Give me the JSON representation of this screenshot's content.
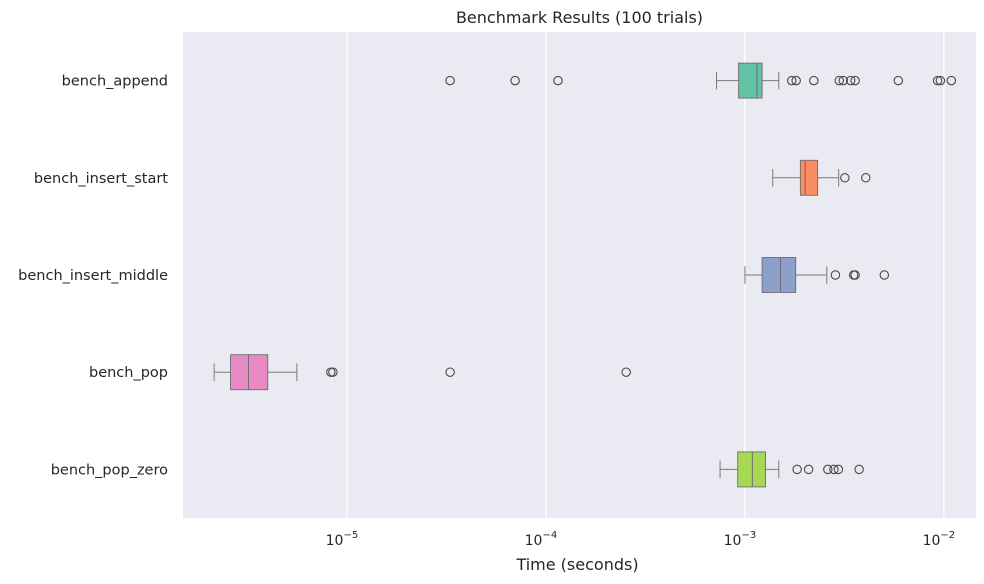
{
  "chart_data": {
    "type": "boxplot",
    "orientation": "horizontal",
    "title": "Benchmark Results (100 trials)",
    "xlabel": "Time (seconds)",
    "ylabel": "",
    "x_scale": "log",
    "xlim": [
      1.5e-06,
      0.0145
    ],
    "x_ticks": [
      {
        "value": 1e-05,
        "base": "10",
        "exp": "−5"
      },
      {
        "value": 0.0001,
        "base": "10",
        "exp": "−4"
      },
      {
        "value": 0.001,
        "base": "10",
        "exp": "−3"
      },
      {
        "value": 0.01,
        "base": "10",
        "exp": "−2"
      }
    ],
    "grid": true,
    "colors": {
      "plot_background": "#eaeaf2",
      "grid": "#ffffff",
      "box_edge": "#6e6e6e",
      "whisker": "#7a7a7a",
      "outlier_edge": "#4a4a4a"
    },
    "boxes": [
      {
        "name": "bench_append",
        "color": "#66c2a5",
        "whisker_low": 0.00072,
        "q1": 0.00093,
        "median": 0.00115,
        "q3": 0.00122,
        "whisker_high": 0.00148,
        "outliers": [
          3.3e-05,
          7e-05,
          0.000115,
          0.00172,
          0.00181,
          0.00222,
          0.00298,
          0.00312,
          0.0034,
          0.00358,
          0.0059,
          0.0093,
          0.0096,
          0.0109
        ]
      },
      {
        "name": "bench_insert_start",
        "color": "#fc8d62",
        "whisker_low": 0.00138,
        "q1": 0.0019,
        "median": 0.00201,
        "q3": 0.00232,
        "whisker_high": 0.00296,
        "outliers": [
          0.00318,
          0.00405
        ]
      },
      {
        "name": "bench_insert_middle",
        "color": "#8da0cb",
        "whisker_low": 0.001,
        "q1": 0.00122,
        "median": 0.00151,
        "q3": 0.0018,
        "whisker_high": 0.00258,
        "outliers": [
          0.00285,
          0.00352,
          0.00358,
          0.00502
        ]
      },
      {
        "name": "bench_pop",
        "color": "#e78ac3",
        "whisker_low": 2.15e-06,
        "q1": 2.6e-06,
        "median": 3.2e-06,
        "q3": 4e-06,
        "whisker_high": 5.6e-06,
        "outliers": [
          8.3e-06,
          8.5e-06,
          3.3e-05,
          0.000253
        ]
      },
      {
        "name": "bench_pop_zero",
        "color": "#a6d854",
        "whisker_low": 0.00075,
        "q1": 0.00092,
        "median": 0.00109,
        "q3": 0.00127,
        "whisker_high": 0.00148,
        "outliers": [
          0.00183,
          0.00209,
          0.00261,
          0.0028,
          0.00295,
          0.00375
        ]
      }
    ]
  }
}
